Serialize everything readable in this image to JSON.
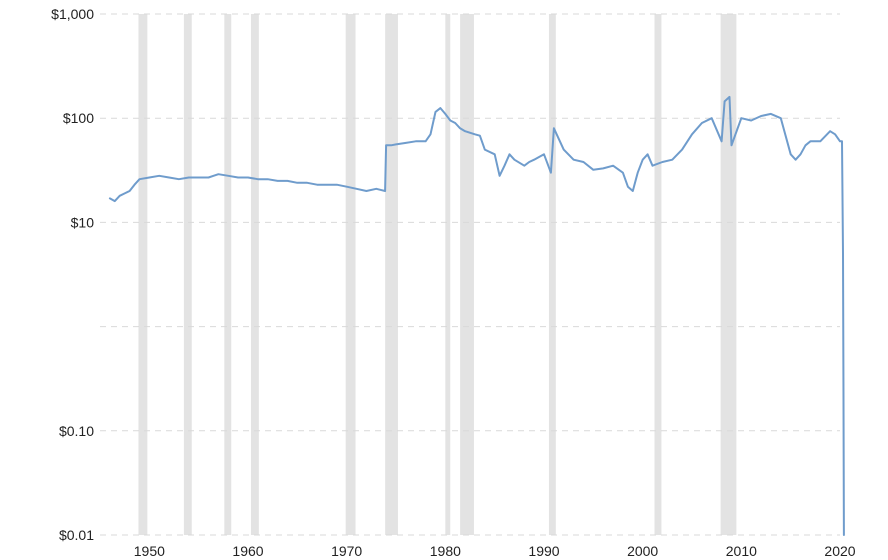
{
  "chart_data": {
    "type": "line",
    "title": "",
    "xlabel": "",
    "ylabel": "",
    "y_scale": "log",
    "xlim": [
      1945,
      2020
    ],
    "ylim": [
      0.01,
      1000
    ],
    "grid": true,
    "legend": "none",
    "colors": {
      "line": "#6f9ccc",
      "recession": "#e3e3e3",
      "grid": "#d9d9d9",
      "text": "#222222"
    },
    "x_ticks": [
      1950,
      1960,
      1970,
      1980,
      1990,
      2000,
      2010,
      2020
    ],
    "x_tick_labels": [
      "1950",
      "1960",
      "1970",
      "1980",
      "1990",
      "2000",
      "2010",
      "2020"
    ],
    "y_ticks": [
      0.01,
      0.1,
      1,
      10,
      100,
      1000
    ],
    "y_tick_labels": [
      "$0.01",
      "$0.10",
      "",
      "$10",
      "$100",
      "$1,000"
    ],
    "recessions": [
      [
        1948.9,
        1949.8
      ],
      [
        1953.5,
        1954.3
      ],
      [
        1957.6,
        1958.3
      ],
      [
        1960.3,
        1961.1
      ],
      [
        1969.9,
        1970.9
      ],
      [
        1973.9,
        1975.2
      ],
      [
        1980.0,
        1980.5
      ],
      [
        1981.5,
        1982.9
      ],
      [
        1990.5,
        1991.2
      ],
      [
        2001.2,
        2001.9
      ],
      [
        2007.9,
        2009.5
      ]
    ],
    "series": [
      {
        "x": [
          1946.0,
          1946.5,
          1947.0,
          1947.5,
          1948.0,
          1948.5,
          1949.0,
          1950.0,
          1951.0,
          1952.0,
          1953.0,
          1954.0,
          1955.0,
          1956.0,
          1956.5,
          1957.0,
          1958.0,
          1959.0,
          1960.0,
          1961.0,
          1962.0,
          1963.0,
          1964.0,
          1965.0,
          1966.0,
          1967.0,
          1968.0,
          1969.0,
          1970.0,
          1971.0,
          1972.0,
          1973.0,
          1973.9,
          1974.0,
          1974.5,
          1975.0,
          1976.0,
          1977.0,
          1978.0,
          1978.5,
          1979.0,
          1979.5,
          1980.0,
          1980.5,
          1981.0,
          1981.5,
          1982.0,
          1983.0,
          1983.5,
          1984.0,
          1985.0,
          1985.5,
          1986.0,
          1986.5,
          1987.0,
          1988.0,
          1988.5,
          1989.0,
          1990.0,
          1990.7,
          1991.0,
          1992.0,
          1993.0,
          1994.0,
          1995.0,
          1996.0,
          1997.0,
          1998.0,
          1998.5,
          1999.0,
          1999.5,
          2000.0,
          2000.5,
          2001.0,
          2002.0,
          2003.0,
          2004.0,
          2005.0,
          2006.0,
          2007.0,
          2008.0,
          2008.3,
          2008.8,
          2009.0,
          2010.0,
          2011.0,
          2012.0,
          2013.0,
          2014.0,
          2015.0,
          2015.5,
          2016.0,
          2016.5,
          2017.0,
          2018.0,
          2019.0,
          2019.5,
          2020.0,
          2020.2,
          2020.3,
          2020.35,
          2020.4
        ],
        "y": [
          17,
          16,
          18,
          19,
          20,
          23,
          26,
          27,
          28,
          27,
          26,
          27,
          27,
          27,
          28,
          29,
          28,
          27,
          27,
          26,
          26,
          25,
          25,
          24,
          24,
          23,
          23,
          23,
          22,
          21,
          20,
          21,
          20,
          55,
          55,
          56,
          58,
          60,
          60,
          70,
          115,
          125,
          110,
          95,
          90,
          80,
          75,
          70,
          68,
          50,
          45,
          28,
          35,
          45,
          40,
          35,
          38,
          40,
          45,
          30,
          80,
          50,
          40,
          38,
          32,
          33,
          35,
          30,
          22,
          20,
          30,
          40,
          45,
          35,
          38,
          40,
          50,
          70,
          90,
          100,
          60,
          145,
          160,
          55,
          100,
          95,
          105,
          110,
          100,
          45,
          40,
          45,
          55,
          60,
          60,
          75,
          70,
          60,
          60,
          5,
          0.2,
          0.01
        ]
      }
    ]
  }
}
